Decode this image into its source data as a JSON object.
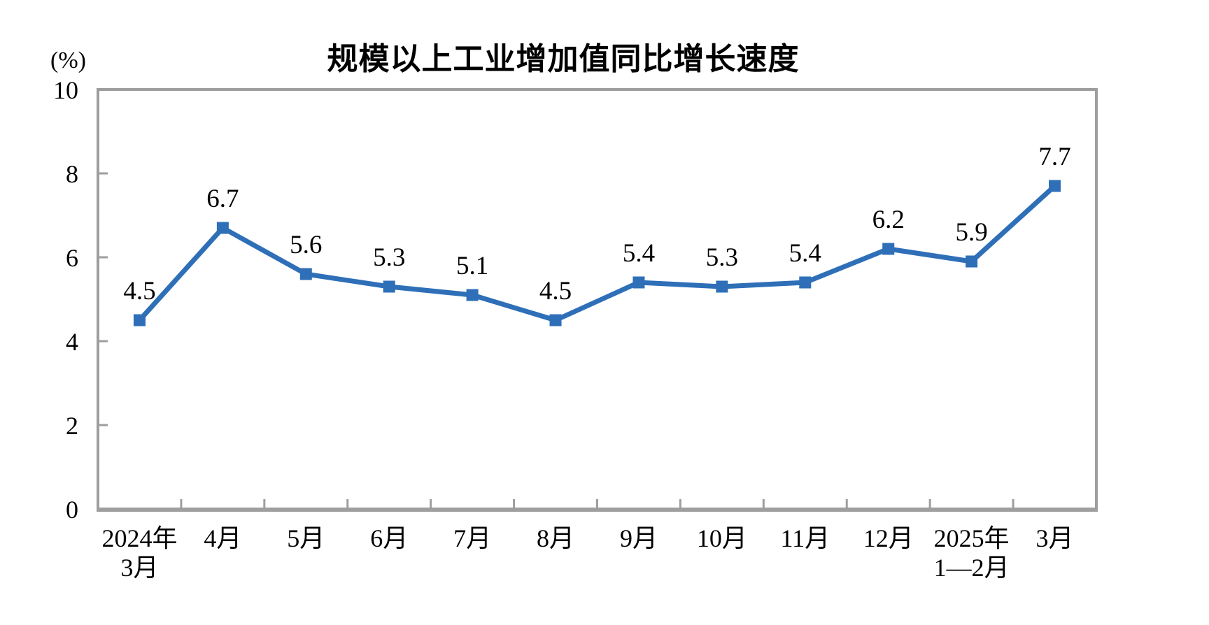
{
  "chart_data": {
    "type": "line",
    "title": "规模以上工业增加值同比增长速度",
    "unit_label": "(%)",
    "categories": [
      {
        "label": "2024年",
        "sublabel": "3月"
      },
      {
        "label": "4月",
        "sublabel": ""
      },
      {
        "label": "5月",
        "sublabel": ""
      },
      {
        "label": "6月",
        "sublabel": ""
      },
      {
        "label": "7月",
        "sublabel": ""
      },
      {
        "label": "8月",
        "sublabel": ""
      },
      {
        "label": "9月",
        "sublabel": ""
      },
      {
        "label": "10月",
        "sublabel": ""
      },
      {
        "label": "11月",
        "sublabel": ""
      },
      {
        "label": "12月",
        "sublabel": ""
      },
      {
        "label": "2025年",
        "sublabel": "1—2月"
      },
      {
        "label": "3月",
        "sublabel": ""
      }
    ],
    "series": [
      {
        "name": "规模以上工业增加值同比增长速度",
        "values": [
          4.5,
          6.7,
          5.6,
          5.3,
          5.1,
          4.5,
          5.4,
          5.3,
          5.4,
          6.2,
          5.9,
          7.7
        ]
      }
    ],
    "data_labels_shown": true,
    "data_label_decimals": 1,
    "ylim": [
      0,
      10
    ],
    "yticks": [
      0,
      2,
      4,
      6,
      8,
      10
    ],
    "grid": "off",
    "legend": "none",
    "marker": "square",
    "colors": {
      "line": "#2E6FB8",
      "marker": "#2E6FB8",
      "axis_border": "#9E9E9E",
      "text": "#000000",
      "background": "#FFFFFF"
    }
  }
}
